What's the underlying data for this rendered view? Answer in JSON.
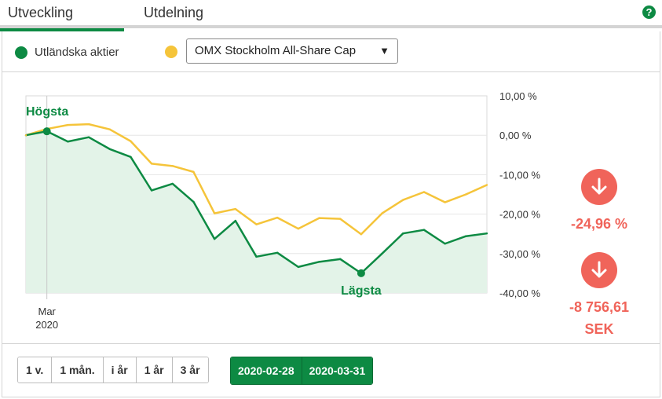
{
  "tabs": {
    "development": "Utveckling",
    "distribution": "Utdelning"
  },
  "legend": {
    "own_label": "Utländska aktier",
    "index_select_value": "OMX Stockholm All-Share Cap"
  },
  "colors": {
    "own": "#0d8a43",
    "index": "#f5c43a",
    "negative": "#f0645a",
    "fill": "#e3f3e8",
    "accent": "#0d8a43"
  },
  "chart_data": {
    "type": "line",
    "x_tick_labels": [
      {
        "month": "Mar",
        "year": "2020"
      }
    ],
    "ylim": [
      -40,
      10
    ],
    "y_ticks": [
      "10,00 %",
      "0,00 %",
      "-10,00 %",
      "-20,00 %",
      "-30,00 %",
      "-40,00 %"
    ],
    "grid": true,
    "series": [
      {
        "name": "Utländska aktier",
        "values": [
          0.0,
          1.0,
          -1.6,
          -0.5,
          -3.5,
          -5.5,
          -14.0,
          -12.3,
          -16.9,
          -26.3,
          -21.7,
          -30.8,
          -29.8,
          -33.4,
          -32.1,
          -31.4,
          -35.0,
          -30.0,
          -24.9,
          -24.0,
          -27.5,
          -25.6,
          -24.9
        ]
      },
      {
        "name": "OMX Stockholm All-Share Cap",
        "values": [
          0.0,
          1.6,
          2.6,
          2.8,
          1.5,
          -1.5,
          -7.2,
          -7.8,
          -9.3,
          -19.8,
          -18.7,
          -22.6,
          -20.9,
          -23.7,
          -21.0,
          -21.2,
          -25.1,
          -19.8,
          -16.4,
          -14.4,
          -17.0,
          -15.0,
          -12.6
        ]
      }
    ],
    "annotations": {
      "high": "Högsta",
      "low": "Lägsta",
      "high_index": 1,
      "low_index": 16
    }
  },
  "stats": {
    "change_percent": "-24,96 %",
    "change_sek": "-8 756,61",
    "currency": "SEK"
  },
  "periods": [
    "1 v.",
    "1 mån.",
    "i år",
    "1 år",
    "3 år"
  ],
  "dates": {
    "start": "2020-02-28",
    "end": "2020-03-31"
  }
}
